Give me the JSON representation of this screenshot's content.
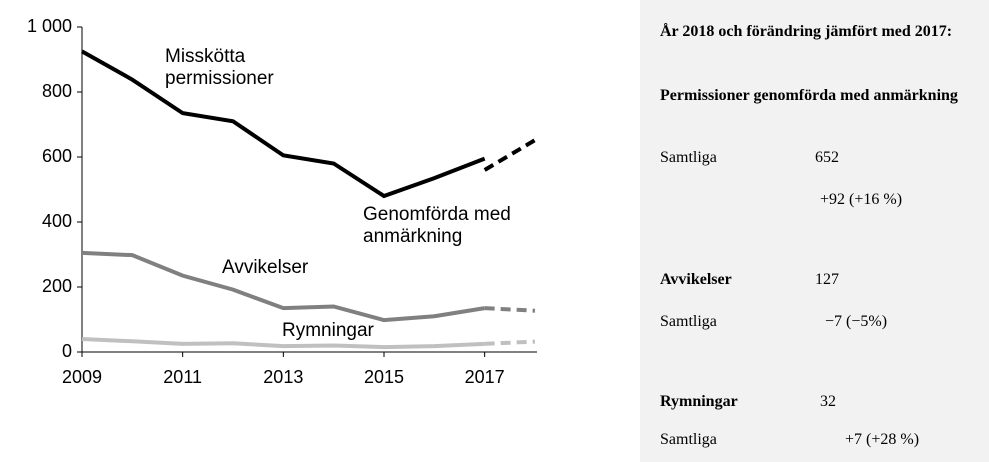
{
  "chart_data": {
    "type": "line",
    "xlim": [
      2009,
      2018
    ],
    "xticks": [
      2009,
      2011,
      2013,
      2015,
      2017
    ],
    "ylim": [
      0,
      1000
    ],
    "yticks": [
      0,
      200,
      400,
      600,
      800,
      {
        "value": 1000,
        "label": "1 000"
      }
    ],
    "series": [
      {
        "name": "Misskötta permissioner",
        "color": "#000000",
        "x": [
          2009,
          2010,
          2011,
          2012,
          2013,
          2014,
          2015,
          2016,
          2017
        ],
        "values": [
          925,
          838,
          735,
          710,
          605,
          580,
          480,
          535,
          595
        ]
      },
      {
        "name": "Genomförda med anmärkning",
        "color": "#000000",
        "dashed": true,
        "x": [
          2017,
          2018
        ],
        "values": [
          560,
          652
        ]
      },
      {
        "name": "Avvikelser",
        "color": "#808080",
        "x": [
          2009,
          2010,
          2011,
          2012,
          2013,
          2014,
          2015,
          2016,
          2017
        ],
        "values": [
          305,
          298,
          235,
          192,
          135,
          140,
          98,
          110,
          135
        ]
      },
      {
        "color": "#808080",
        "dashed": true,
        "x": [
          2017,
          2018
        ],
        "values": [
          135,
          127
        ]
      },
      {
        "name": "Rymningar",
        "color": "#c0c0c0",
        "x": [
          2009,
          2010,
          2011,
          2012,
          2013,
          2014,
          2015,
          2016,
          2017
        ],
        "values": [
          40,
          33,
          25,
          27,
          18,
          20,
          15,
          18,
          25
        ]
      },
      {
        "color": "#c0c0c0",
        "dashed": true,
        "x": [
          2017,
          2018
        ],
        "values": [
          25,
          32
        ]
      }
    ]
  },
  "panel": {
    "heading": "År 2018 och förändring jämfört med 2017:",
    "permissioner": {
      "title": "Permissioner genomförda med anmärkning",
      "label": "Samtliga",
      "value": "652",
      "change": "+92 (+16 %)"
    },
    "avvikelser": {
      "title": "Avvikelser",
      "value": "127",
      "label": "Samtliga",
      "change": "−7 (−5%)"
    },
    "rymningar": {
      "title": "Rymningar",
      "value": "32",
      "label": "Samtliga",
      "change": "+7 (+28 %)"
    }
  }
}
